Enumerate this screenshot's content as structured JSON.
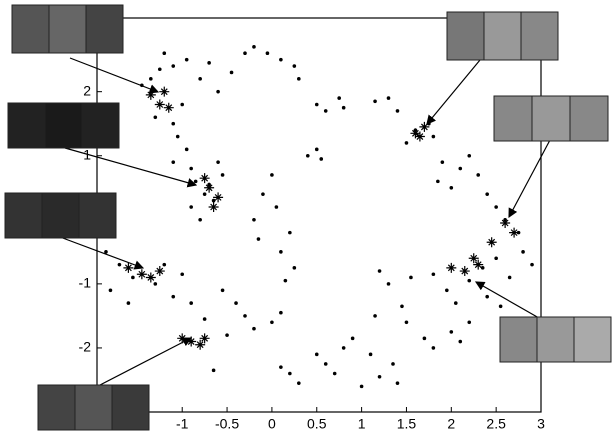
{
  "chart_data": {
    "type": "scatter",
    "xlim": [
      -1.95,
      3
    ],
    "ylim": [
      -3,
      3.15
    ],
    "xticks": [
      -1,
      -0.5,
      0,
      0.5,
      1,
      1.5,
      2,
      2.5,
      3
    ],
    "yticks": [
      -2,
      -1,
      1,
      2
    ],
    "series": [
      {
        "marker": "dot",
        "color": "#000000",
        "x": [
          -1.2,
          -1.1,
          -0.95,
          -0.8,
          -0.7,
          -0.6,
          -0.45,
          -0.3,
          -0.2,
          -0.05,
          0.1,
          0.25,
          0.3,
          0.5,
          0.6,
          0.75,
          0.8,
          1.15,
          1.3,
          1.4,
          0.4,
          0.5,
          0.55,
          -1.45,
          -1.35,
          -1.3,
          -1.25,
          -1.1,
          -1.0,
          -1.05,
          -0.95,
          -1.1,
          -0.9,
          -0.85,
          -0.75,
          -0.7,
          -0.65,
          -0.9,
          -0.8,
          -0.55,
          -0.6,
          1.5,
          1.6,
          1.75,
          1.8,
          1.9,
          1.85,
          2.0,
          2.1,
          2.2,
          2.3,
          2.4,
          2.5,
          2.6,
          2.75,
          2.8,
          2.9,
          2.65,
          2.5,
          2.35,
          2.2,
          0.0,
          -0.1,
          0.05,
          -0.2,
          0.2,
          0.1,
          0.25,
          0.15,
          -0.15,
          -1.85,
          -1.8,
          -1.7,
          -1.6,
          -1.55,
          -1.3,
          -1.2,
          -1.1,
          -1.0,
          -0.9,
          -0.75,
          -0.55,
          -0.4,
          -0.3,
          -0.2,
          0.0,
          0.1,
          -0.5,
          -0.65,
          0.1,
          0.2,
          0.3,
          0.5,
          0.6,
          0.7,
          0.8,
          0.9,
          1.0,
          1.1,
          1.2,
          1.4,
          1.35,
          1.2,
          1.3,
          1.45,
          1.5,
          1.55,
          1.8,
          1.95,
          2.05,
          1.7,
          1.8,
          2.0,
          2.1,
          2.2,
          2.4,
          2.55,
          1.15
        ],
        "values": [
          2.6,
          2.4,
          2.5,
          2.2,
          2.45,
          2.0,
          2.3,
          2.6,
          2.7,
          2.6,
          2.5,
          2.4,
          2.2,
          1.8,
          1.7,
          1.9,
          1.75,
          1.85,
          1.9,
          1.7,
          1.0,
          1.1,
          0.95,
          2.1,
          2.2,
          1.6,
          2.35,
          1.5,
          1.8,
          1.3,
          1.1,
          0.9,
          0.8,
          0.6,
          0.4,
          0.55,
          0.3,
          0.2,
          0.0,
          0.7,
          0.9,
          1.2,
          1.4,
          1.5,
          1.3,
          0.9,
          0.6,
          0.5,
          0.8,
          1.0,
          0.7,
          0.4,
          0.2,
          0.0,
          -0.2,
          -0.5,
          -0.7,
          -0.9,
          -0.6,
          -0.75,
          -0.95,
          0.7,
          0.4,
          0.2,
          0.0,
          -0.2,
          -0.5,
          -0.75,
          -0.95,
          -0.3,
          -0.5,
          -1.1,
          -0.7,
          -1.3,
          -0.9,
          -1.0,
          -0.7,
          -1.2,
          -0.85,
          -1.3,
          -1.55,
          -1.1,
          -1.3,
          -1.5,
          -1.7,
          -1.6,
          -1.45,
          -1.8,
          -2.35,
          -2.3,
          -2.4,
          -2.55,
          -2.1,
          -2.25,
          -2.4,
          -2.0,
          -1.85,
          -2.6,
          -2.1,
          -2.45,
          -2.55,
          -2.25,
          -0.8,
          -1.0,
          -1.35,
          -1.6,
          -0.9,
          -0.85,
          -1.1,
          -1.3,
          -1.85,
          -2.0,
          -1.75,
          -1.9,
          -1.6,
          -1.2,
          -1.35,
          -1.5
        ]
      },
      {
        "marker": "star",
        "color": "#000000",
        "x": [
          -1.35,
          -1.25,
          -1.15,
          -1.2,
          -0.7,
          -0.6,
          -0.75,
          -0.65,
          -1.6,
          -1.45,
          -1.35,
          -1.25,
          -1.0,
          -0.9,
          -0.8,
          -0.75,
          1.6,
          1.7,
          1.65,
          2.7,
          2.6,
          2.45,
          2.3,
          2.15,
          2.0,
          2.25
        ],
        "values": [
          1.95,
          1.8,
          1.75,
          2.0,
          0.5,
          0.35,
          0.65,
          0.2,
          -0.75,
          -0.85,
          -0.9,
          -0.8,
          -1.85,
          -1.9,
          -1.95,
          -1.85,
          1.35,
          1.45,
          1.3,
          -0.2,
          -0.05,
          -0.35,
          -0.7,
          -0.8,
          -0.75,
          -0.6
        ]
      }
    ]
  }
}
